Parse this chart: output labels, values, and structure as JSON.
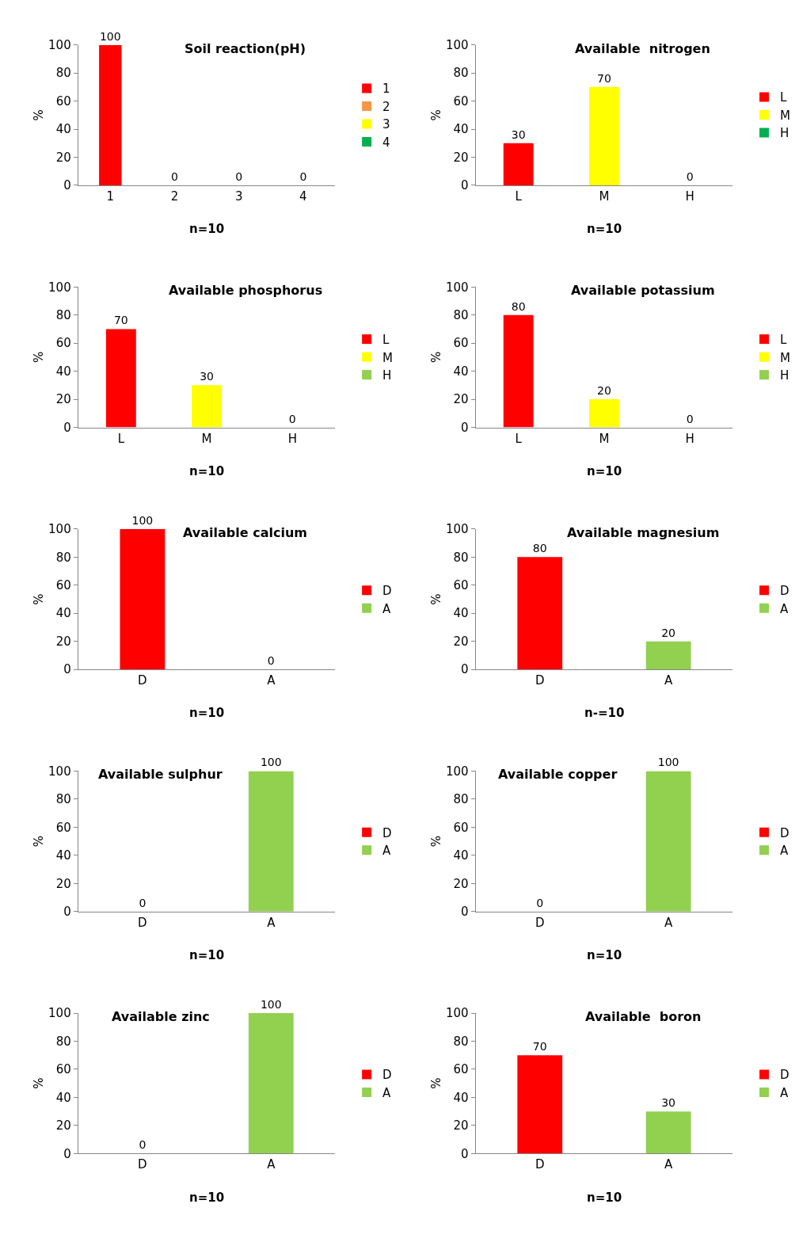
{
  "chart_data": [
    {
      "type": "bar",
      "title": "Soil reaction(pH)",
      "ylabel": "%",
      "categories": [
        "1",
        "2",
        "3",
        "4"
      ],
      "series": [
        {
          "name": "1",
          "color": "#ff0000",
          "values": [
            100,
            null,
            null,
            null
          ]
        },
        {
          "name": "2",
          "color": "#f79646",
          "values": [
            null,
            0,
            null,
            null
          ]
        },
        {
          "name": "3",
          "color": "#ffff00",
          "values": [
            null,
            null,
            0,
            null
          ]
        },
        {
          "name": "4",
          "color": "#00b050",
          "values": [
            null,
            null,
            null,
            0
          ]
        }
      ],
      "ylim": [
        0,
        100
      ],
      "yticks": [
        0,
        20,
        40,
        60,
        80,
        100
      ],
      "data_labels": true,
      "legend": "right",
      "annotations": [
        "n=10"
      ]
    },
    {
      "type": "bar",
      "title": "Available  nitrogen",
      "ylabel": "%",
      "categories": [
        "L",
        "M",
        "H"
      ],
      "series": [
        {
          "name": "L",
          "color": "#ff0000",
          "values": [
            30,
            null,
            null
          ]
        },
        {
          "name": "M",
          "color": "#ffff00",
          "values": [
            null,
            70,
            null
          ]
        },
        {
          "name": "H",
          "color": "#00b050",
          "values": [
            null,
            null,
            0
          ]
        }
      ],
      "ylim": [
        0,
        100
      ],
      "yticks": [
        0,
        20,
        40,
        60,
        80,
        100
      ],
      "data_labels": true,
      "legend": "right",
      "annotations": [
        "n=10"
      ]
    },
    {
      "type": "bar",
      "title": "Available phosphorus",
      "ylabel": "%",
      "categories": [
        "L",
        "M",
        "H"
      ],
      "series": [
        {
          "name": "L",
          "color": "#ff0000",
          "values": [
            70,
            null,
            null
          ]
        },
        {
          "name": "M",
          "color": "#ffff00",
          "values": [
            null,
            30,
            null
          ]
        },
        {
          "name": "H",
          "color": "#92d050",
          "values": [
            null,
            null,
            0
          ]
        }
      ],
      "ylim": [
        0,
        100
      ],
      "yticks": [
        0,
        20,
        40,
        60,
        80,
        100
      ],
      "data_labels": true,
      "legend": "right",
      "annotations": [
        "n=10"
      ]
    },
    {
      "type": "bar",
      "title": "Available potassium",
      "ylabel": "%",
      "categories": [
        "L",
        "M",
        "H"
      ],
      "series": [
        {
          "name": "L",
          "color": "#ff0000",
          "values": [
            80,
            null,
            null
          ]
        },
        {
          "name": "M",
          "color": "#ffff00",
          "values": [
            null,
            20,
            null
          ]
        },
        {
          "name": "H",
          "color": "#92d050",
          "values": [
            null,
            null,
            0
          ]
        }
      ],
      "ylim": [
        0,
        100
      ],
      "yticks": [
        0,
        20,
        40,
        60,
        80,
        100
      ],
      "data_labels": true,
      "legend": "right",
      "annotations": [
        "n=10"
      ]
    },
    {
      "type": "bar",
      "title": "Available calcium",
      "ylabel": "%",
      "categories": [
        "D",
        "A"
      ],
      "series": [
        {
          "name": "D",
          "color": "#ff0000",
          "values": [
            100,
            null
          ]
        },
        {
          "name": "A",
          "color": "#92d050",
          "values": [
            null,
            0
          ]
        }
      ],
      "ylim": [
        0,
        100
      ],
      "yticks": [
        0,
        20,
        40,
        60,
        80,
        100
      ],
      "data_labels": true,
      "legend": "right",
      "annotations": [
        "n=10"
      ]
    },
    {
      "type": "bar",
      "title": "Available magnesium",
      "ylabel": "%",
      "categories": [
        "D",
        "A"
      ],
      "series": [
        {
          "name": "D",
          "color": "#ff0000",
          "values": [
            80,
            null
          ]
        },
        {
          "name": "A",
          "color": "#92d050",
          "values": [
            null,
            20
          ]
        }
      ],
      "ylim": [
        0,
        100
      ],
      "yticks": [
        0,
        20,
        40,
        60,
        80,
        100
      ],
      "data_labels": true,
      "legend": "right",
      "annotations": [
        "n-=10"
      ]
    },
    {
      "type": "bar",
      "title": "Available sulphur",
      "ylabel": "%",
      "categories": [
        "D",
        "A"
      ],
      "series": [
        {
          "name": "D",
          "color": "#ff0000",
          "values": [
            0,
            null
          ]
        },
        {
          "name": "A",
          "color": "#92d050",
          "values": [
            null,
            100
          ]
        }
      ],
      "ylim": [
        0,
        100
      ],
      "yticks": [
        0,
        20,
        40,
        60,
        80,
        100
      ],
      "data_labels": true,
      "legend": "right",
      "annotations": [
        "n=10"
      ]
    },
    {
      "type": "bar",
      "title": "Available copper",
      "ylabel": "%",
      "categories": [
        "D",
        "A"
      ],
      "series": [
        {
          "name": "D",
          "color": "#ff0000",
          "values": [
            0,
            null
          ]
        },
        {
          "name": "A",
          "color": "#92d050",
          "values": [
            null,
            100
          ]
        }
      ],
      "ylim": [
        0,
        100
      ],
      "yticks": [
        0,
        20,
        40,
        60,
        80,
        100
      ],
      "data_labels": true,
      "legend": "right",
      "annotations": [
        "n=10"
      ]
    },
    {
      "type": "bar",
      "title": "Available zinc",
      "ylabel": "%",
      "categories": [
        "D",
        "A"
      ],
      "series": [
        {
          "name": "D",
          "color": "#ff0000",
          "values": [
            0,
            null
          ]
        },
        {
          "name": "A",
          "color": "#92d050",
          "values": [
            null,
            100
          ]
        }
      ],
      "ylim": [
        0,
        100
      ],
      "yticks": [
        0,
        20,
        40,
        60,
        80,
        100
      ],
      "data_labels": true,
      "legend": "right",
      "annotations": [
        "n=10"
      ]
    },
    {
      "type": "bar",
      "title": "Available  boron",
      "ylabel": "%",
      "categories": [
        "D",
        "A"
      ],
      "series": [
        {
          "name": "D",
          "color": "#ff0000",
          "values": [
            70,
            null
          ]
        },
        {
          "name": "A",
          "color": "#92d050",
          "values": [
            null,
            30
          ]
        }
      ],
      "ylim": [
        0,
        100
      ],
      "yticks": [
        0,
        20,
        40,
        60,
        80,
        100
      ],
      "data_labels": true,
      "legend": "right",
      "annotations": [
        "n=10"
      ]
    }
  ]
}
